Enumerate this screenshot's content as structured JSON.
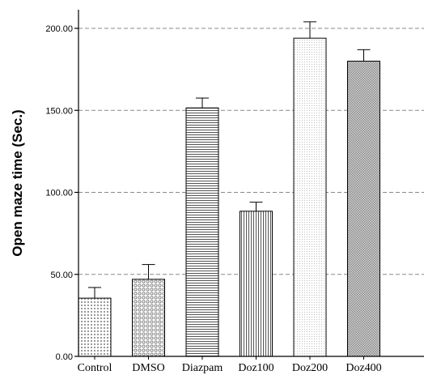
{
  "chart_data": {
    "type": "bar",
    "title": "",
    "xlabel": "",
    "ylabel": "Open maze time (Sec.)",
    "categories": [
      "Control",
      "DMSO",
      "Diazpam",
      "Doz100",
      "Doz200",
      "Doz400"
    ],
    "series": [
      {
        "values": [
          35.5,
          47.0,
          151.5,
          88.5,
          194.0,
          180.0
        ],
        "error": [
          6.5,
          9.0,
          6.0,
          5.5,
          10.0,
          7.0
        ]
      }
    ],
    "patterns": [
      "dots",
      "circles",
      "horizontal-lines",
      "vertical-lines",
      "fine-dots",
      "crosshatch"
    ],
    "ylim": [
      0,
      210
    ],
    "yticks": [
      0,
      50,
      100,
      150,
      200
    ],
    "ytick_labels": [
      "0.00",
      "50.00",
      "100.00",
      "150.00",
      "200.00"
    ],
    "grid": true
  }
}
